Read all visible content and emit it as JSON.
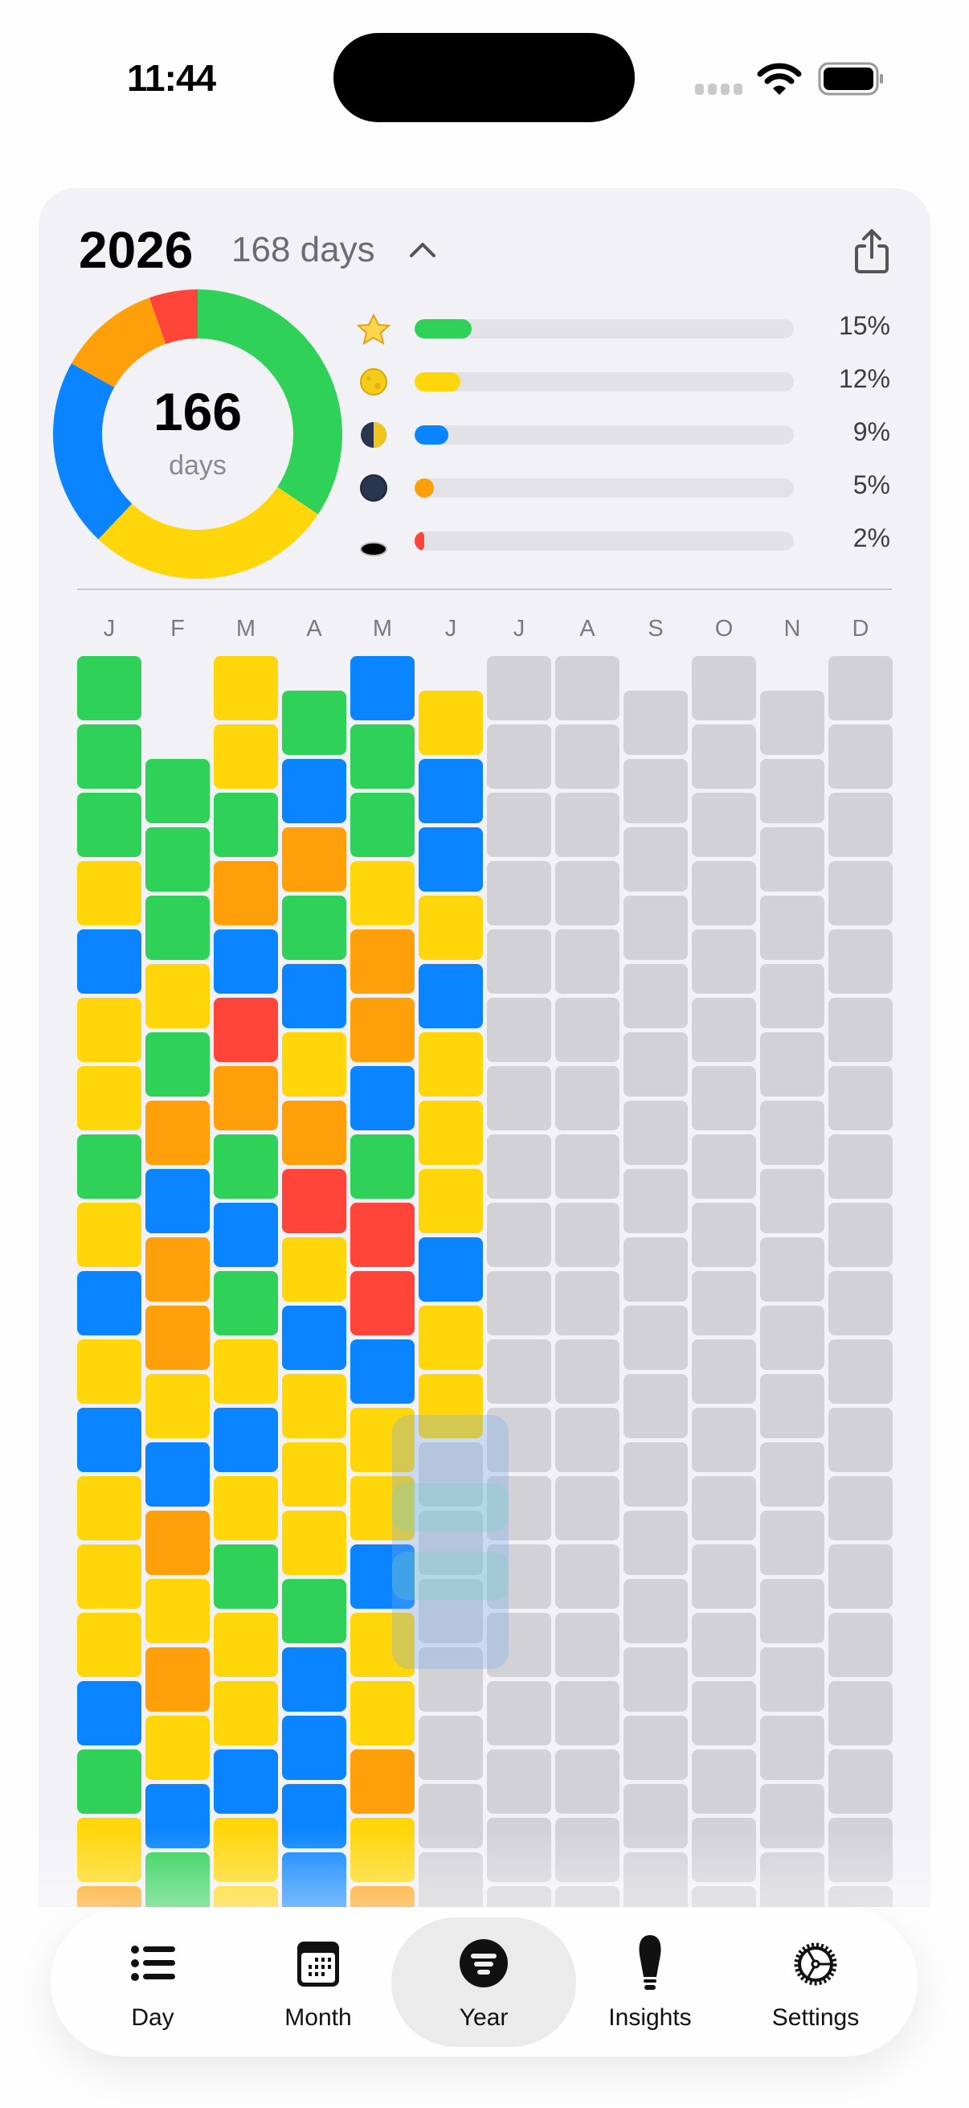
{
  "status_bar": {
    "time": "11:44",
    "icons": [
      "cellular-dots-icon",
      "wifi-icon",
      "battery-icon"
    ]
  },
  "header": {
    "year": "2026",
    "days_label": "168 days",
    "collapse_icon": "chevron-up-icon",
    "share_icon": "share-icon"
  },
  "colors": {
    "great": "#30d158",
    "good": "#ffd60a",
    "okay": "#0a84ff",
    "bad": "#ff9f0a",
    "awful": "#ff453a",
    "empty": "#d1d1d6"
  },
  "summary": {
    "count": "166",
    "unit": "days",
    "moods": [
      {
        "icon": "star-icon",
        "color": "#30d158",
        "percent": 15,
        "label": "15%",
        "donut_days": 57
      },
      {
        "icon": "full-moon-icon",
        "color": "#ffd60a",
        "percent": 12,
        "label": "12%",
        "donut_days": 46
      },
      {
        "icon": "half-moon-icon",
        "color": "#0a84ff",
        "percent": 9,
        "label": "9%",
        "donut_days": 35
      },
      {
        "icon": "new-moon-icon",
        "color": "#ff9f0a",
        "percent": 5,
        "label": "5%",
        "donut_days": 19
      },
      {
        "icon": "hole-icon",
        "color": "#ff453a",
        "percent": 2,
        "label": "2%",
        "donut_days": 9
      }
    ]
  },
  "grid": {
    "months": [
      {
        "label": "J",
        "days": 31,
        "moods": [
          "G",
          "G",
          "G",
          "Y",
          "B",
          "Y",
          "Y",
          "G",
          "Y",
          "B",
          "Y",
          "B",
          "Y",
          "Y",
          "Y",
          "B",
          "G",
          "Y",
          "O"
        ]
      },
      {
        "label": "F",
        "days": 28,
        "moods": [
          "G",
          "G",
          "G",
          "Y",
          "G",
          "O",
          "B",
          "O",
          "O",
          "Y",
          "B",
          "O",
          "Y",
          "O",
          "Y",
          "B",
          "G"
        ]
      },
      {
        "label": "M",
        "days": 31,
        "moods": [
          "Y",
          "Y",
          "G",
          "O",
          "B",
          "R",
          "O",
          "G",
          "B",
          "G",
          "Y",
          "B",
          "Y",
          "G",
          "Y",
          "Y",
          "B",
          "Y",
          "Y"
        ]
      },
      {
        "label": "A",
        "days": 30,
        "moods": [
          "G",
          "B",
          "O",
          "G",
          "B",
          "Y",
          "O",
          "R",
          "Y",
          "B",
          "Y",
          "Y",
          "Y",
          "G",
          "B",
          "B",
          "B",
          "B"
        ]
      },
      {
        "label": "M",
        "days": 31,
        "moods": [
          "B",
          "G",
          "G",
          "Y",
          "O",
          "O",
          "B",
          "G",
          "R",
          "R",
          "B",
          "Y",
          "Y",
          "B",
          "Y",
          "Y",
          "O",
          "Y",
          "O"
        ]
      },
      {
        "label": "J",
        "days": 30,
        "moods": [
          "Y",
          "B",
          "B",
          "Y",
          "B",
          "Y",
          "Y",
          "Y",
          "B",
          "Y",
          "Y"
        ]
      },
      {
        "label": "J",
        "days": 31,
        "moods": []
      },
      {
        "label": "A",
        "days": 31,
        "moods": []
      },
      {
        "label": "S",
        "days": 30,
        "moods": []
      },
      {
        "label": "O",
        "days": 31,
        "moods": []
      },
      {
        "label": "N",
        "days": 30,
        "moods": []
      },
      {
        "label": "D",
        "days": 31,
        "moods": []
      }
    ],
    "mood_key": {
      "G": "#30d158",
      "Y": "#ffd60a",
      "B": "#0a84ff",
      "O": "#ff9f0a",
      "R": "#ff453a"
    }
  },
  "tabs": [
    {
      "label": "Day",
      "icon": "list-icon",
      "active": false
    },
    {
      "label": "Month",
      "icon": "calendar-icon",
      "active": false
    },
    {
      "label": "Year",
      "icon": "year-icon",
      "active": true
    },
    {
      "label": "Insights",
      "icon": "lightbulb-icon",
      "active": false
    },
    {
      "label": "Settings",
      "icon": "gear-icon",
      "active": false
    }
  ]
}
